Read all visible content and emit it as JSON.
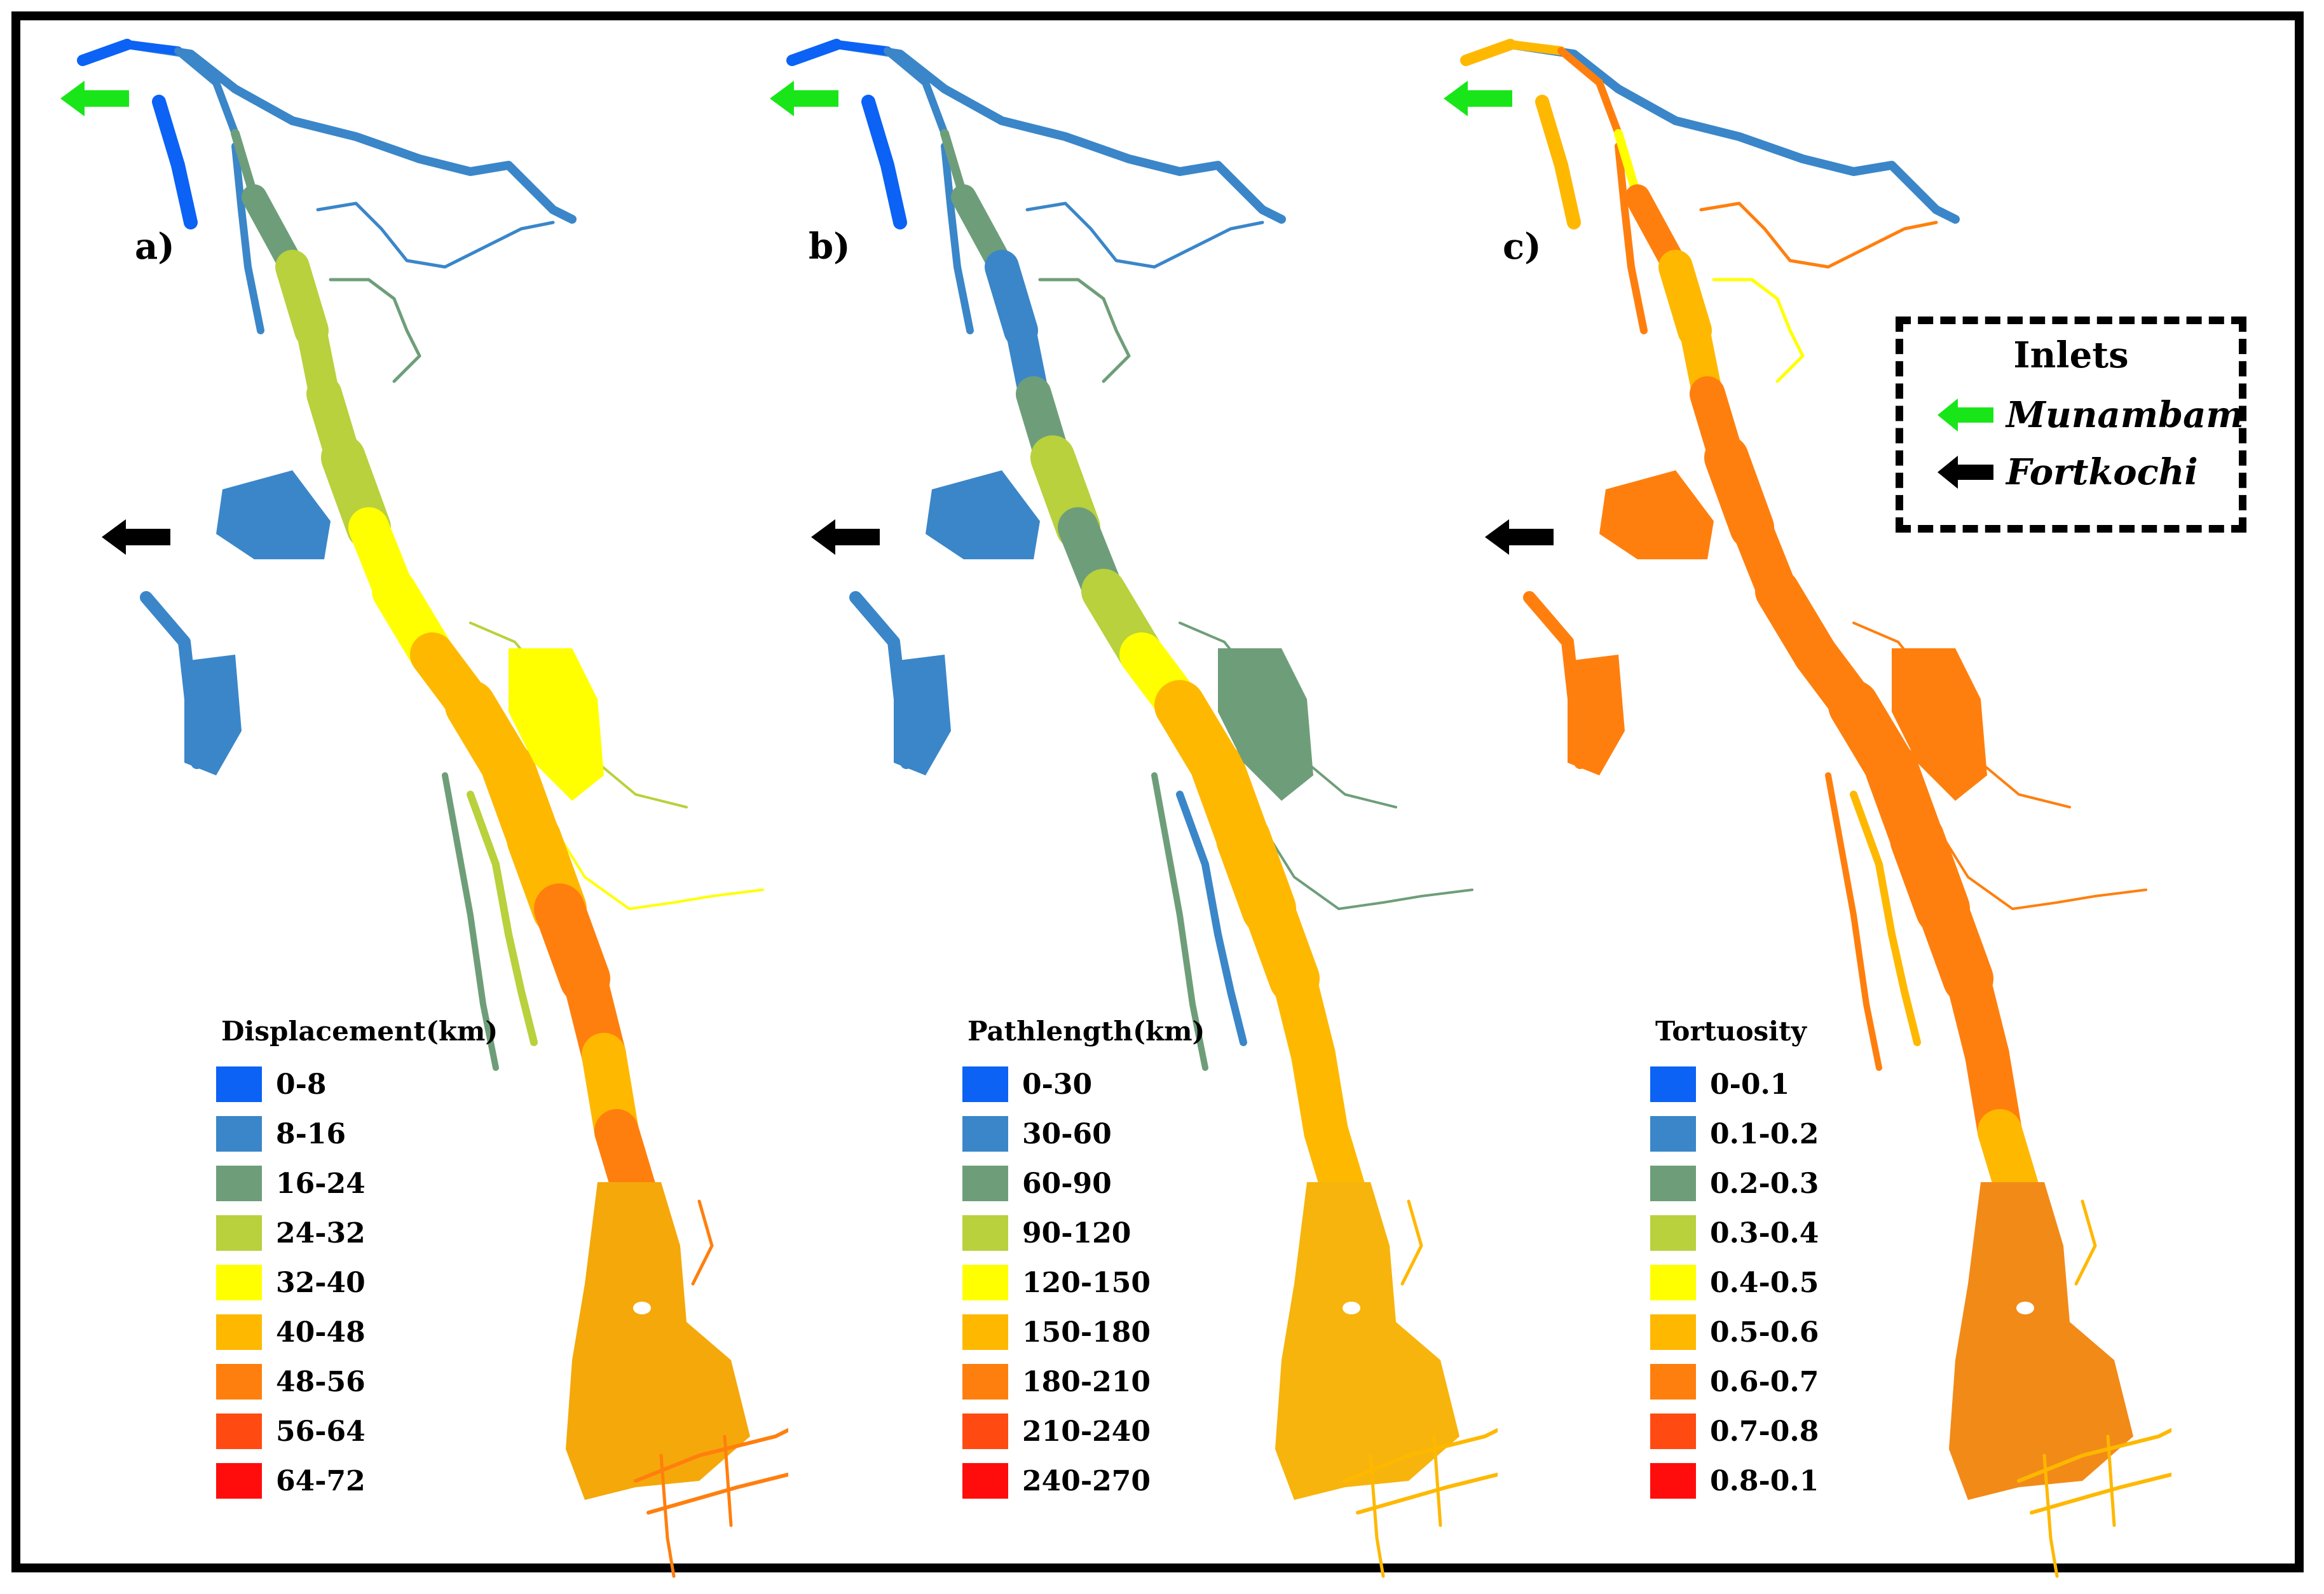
{
  "panels": [
    {
      "label": "a)",
      "legend_title": "Displacement(km)",
      "classes": [
        "0-8",
        "8-16",
        "16-24",
        "24-32",
        "32-40",
        "40-48",
        "48-56",
        "56-64",
        "64-72"
      ],
      "ramp": [
        0,
        1,
        1,
        2,
        2,
        3,
        3,
        3,
        4,
        4,
        5,
        5,
        5,
        6,
        6,
        5,
        6
      ],
      "lagoon_color": "#f5a80a"
    },
    {
      "label": "b)",
      "legend_title": "Pathlength(km)",
      "classes": [
        "0-30",
        "30-60",
        "60-90",
        "90-120",
        "120-150",
        "150-180",
        "180-210",
        "210-240",
        "240-270"
      ],
      "ramp": [
        0,
        1,
        1,
        2,
        2,
        1,
        2,
        3,
        2,
        3,
        4,
        5,
        5,
        5,
        5,
        5,
        5
      ],
      "lagoon_color": "#f7b40c"
    },
    {
      "label": "c)",
      "legend_title": "Tortuosity",
      "classes": [
        "0-0.1",
        "0.1-0.2",
        "0.2-0.3",
        "0.3-0.4",
        "0.4-0.5",
        "0.5-0.6",
        "0.6-0.7",
        "0.7-0.8",
        "0.8-0.1"
      ],
      "ramp": [
        5,
        6,
        6,
        4,
        6,
        5,
        6,
        6,
        6,
        6,
        6,
        6,
        6,
        6,
        6,
        6,
        5
      ],
      "lagoon_color": "#f28a18"
    }
  ],
  "palette": [
    "#0b62f5",
    "#3a86c9",
    "#6e9e79",
    "#b8d13c",
    "#ffff00",
    "#ffb800",
    "#ff7f0e",
    "#ff4a12",
    "#ff0d0d"
  ],
  "inlets": {
    "title": "Inlets",
    "items": [
      {
        "name": "Munambam",
        "color": "#19e619",
        "icon": "green-arrow-icon"
      },
      {
        "name": "Fortkochi",
        "color": "#000000",
        "icon": "black-arrow-icon"
      }
    ]
  }
}
